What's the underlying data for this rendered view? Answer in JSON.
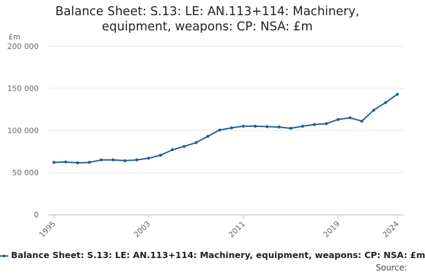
{
  "chart_data": {
    "type": "line",
    "title_lines": [
      "Balance Sheet: S.13: LE: AN.113+114: Machinery,",
      "equipment, weapons: CP: NSA: £m"
    ],
    "ylabel": "£m",
    "xlabel": "",
    "ylim": [
      0,
      200000
    ],
    "y_ticks": [
      0,
      50000,
      100000,
      150000,
      200000
    ],
    "y_tick_labels": [
      "0",
      "50 000",
      "100 000",
      "150 000",
      "200 000"
    ],
    "xlim": [
      1995,
      2024
    ],
    "x_ticks": [
      1995,
      2003,
      2011,
      2019,
      2024
    ],
    "x_tick_labels": [
      "1995",
      "2003",
      "2011",
      "2019",
      "2024"
    ],
    "grid": true,
    "legend_position": "bottom",
    "series": [
      {
        "name": "Balance Sheet: S.13: LE: AN.113+114: Machinery, equipment, weapons: CP: NSA: £m",
        "color": "#206095",
        "x": [
          1995,
          1996,
          1997,
          1998,
          1999,
          2000,
          2001,
          2002,
          2003,
          2004,
          2005,
          2006,
          2007,
          2008,
          2009,
          2010,
          2011,
          2012,
          2013,
          2014,
          2015,
          2016,
          2017,
          2018,
          2019,
          2020,
          2021,
          2022,
          2023,
          2024
        ],
        "values": [
          62000,
          62500,
          61500,
          62000,
          65000,
          65000,
          64000,
          65000,
          67000,
          70500,
          77000,
          81000,
          85500,
          93000,
          100500,
          103000,
          105000,
          105000,
          104500,
          104000,
          102500,
          105000,
          107000,
          108000,
          113000,
          115000,
          111000,
          124000,
          133000,
          143000
        ]
      }
    ]
  },
  "source_label": "Source:"
}
